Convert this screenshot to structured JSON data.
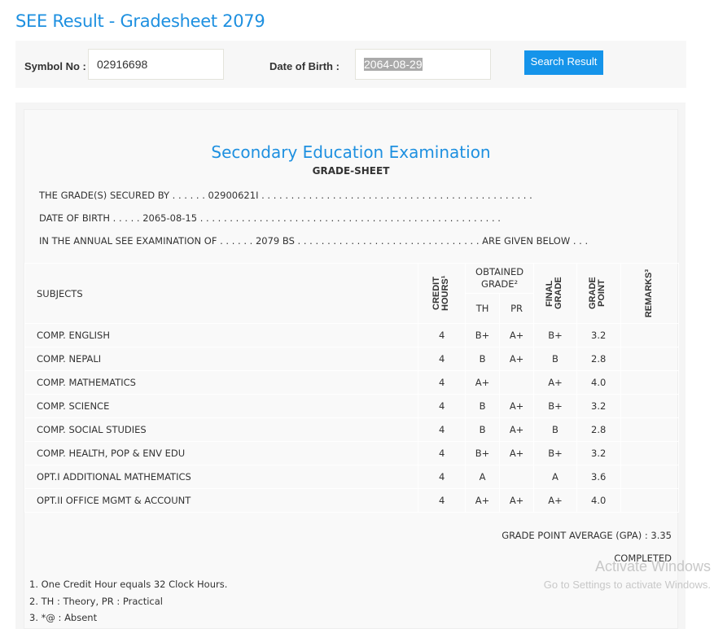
{
  "page_title": "SEE Result - Gradesheet 2079",
  "form": {
    "symbol_label": "Symbol No :",
    "symbol_value": "02916698",
    "dob_label": "Date of Birth :",
    "dob_value": "2064-08-29",
    "search_label": "Search Result"
  },
  "sheet": {
    "heading": "Secondary Education Examination",
    "subheading": "GRADE-SHEET",
    "line1": "THE GRADE(S) SECURED BY . . . . . . 02900621I . . . . . . . . . . . . . . . . . . . . . . . . . . . . . . . . . . . . . . . . . . . . . .",
    "line2": "DATE OF BIRTH . . . . . 2065-08-15 . . . . . . . . . . . . . . . . . . . . . . . . . . . . . . . . . . . . . . . . . . . . . . . . . . .",
    "line3": "IN THE ANNUAL SEE EXAMINATION OF . . . . . . 2079 BS . . . . . . . . . . . . . . . . . . . . . . . . . . . . . . . ARE GIVEN BELOW . . .",
    "headers": {
      "subjects": "SUBJECTS",
      "credit": "CREDIT HOURS¹",
      "obtained": "OBTAINED GRADE²",
      "th": "TH",
      "pr": "PR",
      "final": "FINAL GRADE",
      "gp": "GRADE POINT",
      "remarks": "REMARKS³"
    },
    "rows": [
      {
        "subject": "COMP. ENGLISH",
        "credit": "4",
        "th": "B+",
        "pr": "A+",
        "final": "B+",
        "gp": "3.2",
        "remarks": ""
      },
      {
        "subject": "COMP. NEPALI",
        "credit": "4",
        "th": "B",
        "pr": "A+",
        "final": "B",
        "gp": "2.8",
        "remarks": ""
      },
      {
        "subject": "COMP. MATHEMATICS",
        "credit": "4",
        "th": "A+",
        "pr": "",
        "final": "A+",
        "gp": "4.0",
        "remarks": ""
      },
      {
        "subject": "COMP. SCIENCE",
        "credit": "4",
        "th": "B",
        "pr": "A+",
        "final": "B+",
        "gp": "3.2",
        "remarks": ""
      },
      {
        "subject": "COMP. SOCIAL STUDIES",
        "credit": "4",
        "th": "B",
        "pr": "A+",
        "final": "B",
        "gp": "2.8",
        "remarks": ""
      },
      {
        "subject": "COMP. HEALTH, POP & ENV EDU",
        "credit": "4",
        "th": "B+",
        "pr": "A+",
        "final": "B+",
        "gp": "3.2",
        "remarks": ""
      },
      {
        "subject": "OPT.I ADDITIONAL MATHEMATICS",
        "credit": "4",
        "th": "A",
        "pr": "",
        "final": "A",
        "gp": "3.6",
        "remarks": ""
      },
      {
        "subject": "OPT.II OFFICE MGMT & ACCOUNT",
        "credit": "4",
        "th": "A+",
        "pr": "A+",
        "final": "A+",
        "gp": "4.0",
        "remarks": ""
      }
    ],
    "gpa": "GRADE POINT AVERAGE (GPA) : 3.35",
    "status": "COMPLETED",
    "notes": [
      "1. One Credit Hour equals 32 Clock Hours.",
      "2. TH : Theory, PR : Practical",
      "3. *@ : Absent"
    ]
  },
  "watermark": {
    "line1": "Activate Windows",
    "line2": "Go to Settings to activate Windows."
  }
}
